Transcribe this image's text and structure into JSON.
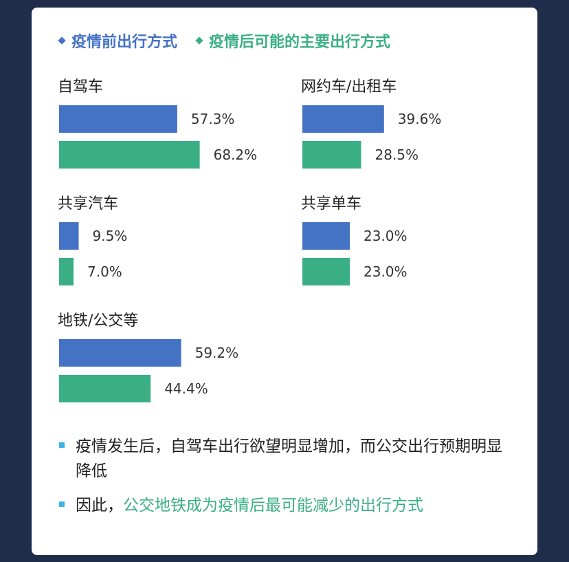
{
  "colors": {
    "before": "#4472c4",
    "after": "#3aaf85",
    "bullet": "#3cb4e6",
    "highlight": "#3aaf85"
  },
  "legend": [
    {
      "label": "疫情前出行方式",
      "icon": "diamond-icon"
    },
    {
      "label": "疫情后可能的主要出行方式",
      "icon": "diamond-icon"
    }
  ],
  "chart_data": {
    "type": "bar",
    "orientation": "horizontal",
    "categories": [
      "自驾车",
      "网约车/出租车",
      "共享汽车",
      "共享单车",
      "地铁/公交等"
    ],
    "series": [
      {
        "name": "疫情前出行方式",
        "values": [
          57.3,
          39.6,
          9.5,
          23.0,
          59.2
        ]
      },
      {
        "name": "疫情后可能的主要出行方式",
        "values": [
          68.2,
          28.5,
          7.0,
          23.0,
          44.4
        ]
      }
    ],
    "value_format": "percent_1dp",
    "legend_position": "top-left",
    "grid": false
  },
  "notes": {
    "n1": "疫情发生后，自驾车出行欲望明显增加，而公交出行预期明显降低",
    "n2_prefix": "因此，",
    "n2_highlight": "公交地铁成为疫情后最可能减少的出行方式"
  }
}
